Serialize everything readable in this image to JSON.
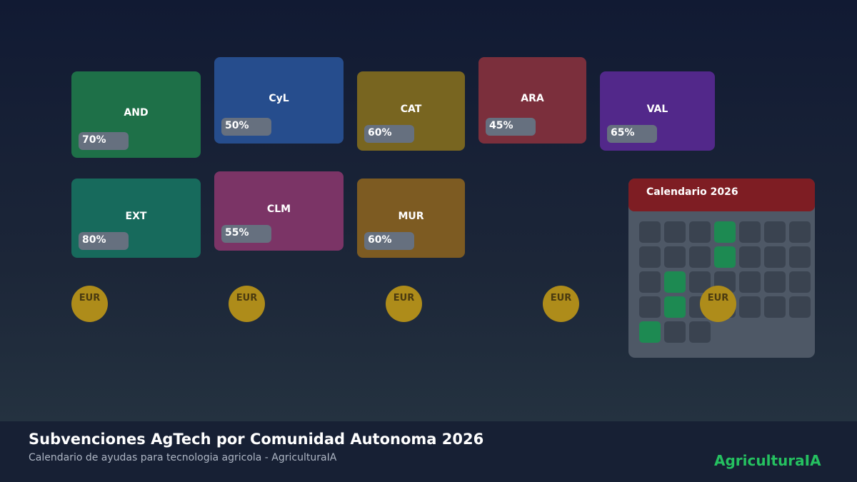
{
  "regions": [
    {
      "code": "AND",
      "percent": "70%",
      "color": "#1e7048"
    },
    {
      "code": "CyL",
      "percent": "50%",
      "color": "#264d8d"
    },
    {
      "code": "CAT",
      "percent": "60%",
      "color": "#786520"
    },
    {
      "code": "ARA",
      "percent": "45%",
      "color": "#7b2f3c"
    },
    {
      "code": "VAL",
      "percent": "65%",
      "color": "#52288a"
    },
    {
      "code": "EXT",
      "percent": "80%",
      "color": "#176a5c"
    },
    {
      "code": "CLM",
      "percent": "55%",
      "color": "#7b3466"
    },
    {
      "code": "MUR",
      "percent": "60%",
      "color": "#7d5b22"
    }
  ],
  "coins": [
    "EUR",
    "EUR",
    "EUR",
    "EUR",
    "EUR"
  ],
  "calendar": {
    "title": "Calendario 2026",
    "rows": [
      [
        0,
        0,
        0,
        1,
        0,
        0,
        0
      ],
      [
        0,
        0,
        0,
        1,
        0,
        0,
        0
      ],
      [
        0,
        1,
        0,
        0,
        0,
        0,
        0
      ],
      [
        0,
        1,
        0,
        0,
        0,
        0,
        0
      ],
      [
        1,
        0,
        0
      ]
    ]
  },
  "footer": {
    "title": "Subvenciones AgTech por Comunidad Autonoma 2026",
    "subtitle": "Calendario de ayudas para tecnologia agricola - AgriculturaIA",
    "brand": "AgriculturaIA"
  },
  "colors": {
    "accent_green": "#25c060",
    "calendar_active": "#1d8a52",
    "calendar_header": "#7e1d23",
    "coin": "#ae8c1a"
  }
}
